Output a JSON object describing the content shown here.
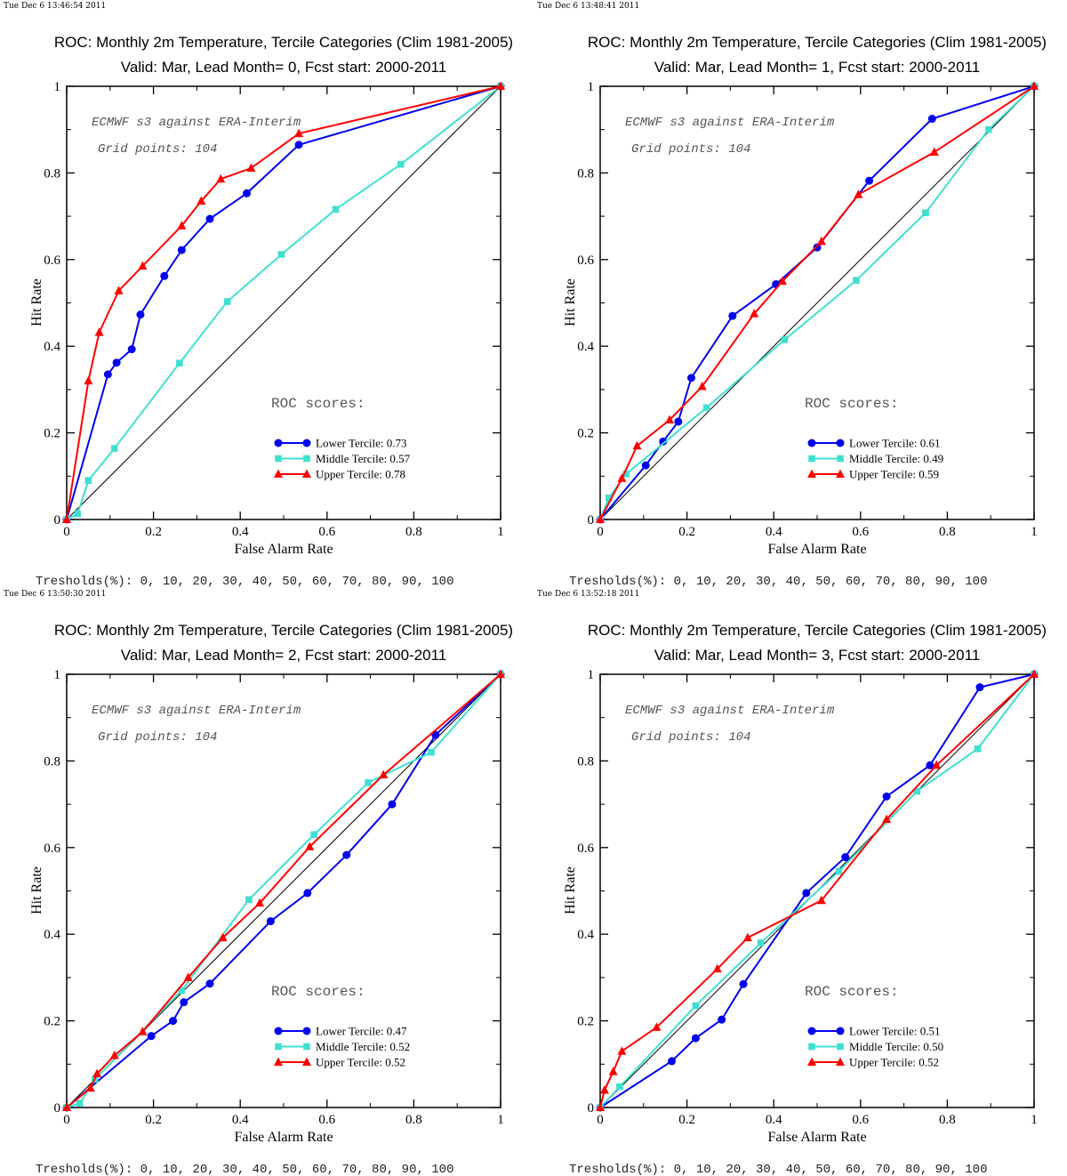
{
  "colors": {
    "lower": "#0000ee",
    "middle": "#40e0d0",
    "upper": "#ff0000",
    "diagonal": "#000000"
  },
  "chart_data": [
    {
      "type": "line",
      "stamp": "Tue Dec  6 13:46:54 2011",
      "title": "ROC: Monthly 2m Temperature, Tercile Categories (Clim 1981-2005)",
      "subtitle": "Valid: Mar, Lead Month= 0, Fcst start: 2000-2011",
      "xlabel": "False Alarm Rate",
      "ylabel": "Hit Rate",
      "xlim": [
        0,
        1
      ],
      "ylim": [
        0,
        1
      ],
      "xticks": [
        "0",
        "0.2",
        "0.4",
        "0.6",
        "0.8",
        "1"
      ],
      "yticks": [
        "0",
        "0.2",
        "0.4",
        "0.6",
        "0.8",
        "1"
      ],
      "note1": "ECMWF s3 against ERA-Interim",
      "note2": "Grid points:  104",
      "scores_heading": "ROC scores:",
      "thresholds": "Tresholds(%): 0, 10, 20, 30, 40, 50, 60, 70, 80, 90, 100",
      "series": [
        {
          "name": "Lower Tercile: 0.73",
          "marker": "circle",
          "color": "#0000ee",
          "x": [
            0,
            0.095,
            0.115,
            0.15,
            0.17,
            0.225,
            0.265,
            0.33,
            0.415,
            0.535,
            1
          ],
          "y": [
            0,
            0.335,
            0.362,
            0.393,
            0.473,
            0.562,
            0.622,
            0.694,
            0.753,
            0.865,
            1
          ]
        },
        {
          "name": "Middle Tercile: 0.57",
          "marker": "square",
          "color": "#40e0d0",
          "x": [
            0,
            0.025,
            0.05,
            0.11,
            0.26,
            0.37,
            0.495,
            0.62,
            0.77,
            1
          ],
          "y": [
            0,
            0.013,
            0.09,
            0.164,
            0.361,
            0.503,
            0.612,
            0.716,
            0.82,
            1
          ]
        },
        {
          "name": "Upper Tercile: 0.78",
          "marker": "triangle",
          "color": "#ff0000",
          "x": [
            0,
            0.05,
            0.075,
            0.12,
            0.175,
            0.265,
            0.31,
            0.355,
            0.425,
            0.535,
            1
          ],
          "y": [
            0,
            0.32,
            0.432,
            0.528,
            0.585,
            0.678,
            0.735,
            0.786,
            0.811,
            0.891,
            1
          ]
        }
      ]
    },
    {
      "type": "line",
      "stamp": "Tue Dec  6 13:48:41 2011",
      "title": "ROC: Monthly 2m Temperature, Tercile Categories (Clim 1981-2005)",
      "subtitle": "Valid: Mar, Lead Month= 1, Fcst start: 2000-2011",
      "xlabel": "False Alarm Rate",
      "ylabel": "Hit Rate",
      "xlim": [
        0,
        1
      ],
      "ylim": [
        0,
        1
      ],
      "xticks": [
        "0",
        "0.2",
        "0.4",
        "0.6",
        "0.8",
        "1"
      ],
      "yticks": [
        "0",
        "0.2",
        "0.4",
        "0.6",
        "0.8",
        "1"
      ],
      "note1": "ECMWF s3 against ERA-Interim",
      "note2": "Grid points:  104",
      "scores_heading": "ROC scores:",
      "thresholds": "Tresholds(%): 0, 10, 20, 30, 40, 50, 60, 70, 80, 90, 100",
      "series": [
        {
          "name": "Lower Tercile: 0.61",
          "marker": "circle",
          "color": "#0000ee",
          "x": [
            0,
            0.105,
            0.145,
            0.18,
            0.21,
            0.305,
            0.405,
            0.5,
            0.62,
            0.765,
            1
          ],
          "y": [
            0,
            0.125,
            0.18,
            0.226,
            0.327,
            0.47,
            0.543,
            0.628,
            0.782,
            0.925,
            1
          ]
        },
        {
          "name": "Middle Tercile: 0.49",
          "marker": "square",
          "color": "#40e0d0",
          "x": [
            0,
            0.02,
            0.06,
            0.245,
            0.425,
            0.59,
            0.75,
            0.895,
            1
          ],
          "y": [
            0,
            0.05,
            0.105,
            0.258,
            0.415,
            0.552,
            0.708,
            0.9,
            1
          ]
        },
        {
          "name": "Upper Tercile: 0.59",
          "marker": "triangle",
          "color": "#ff0000",
          "x": [
            0,
            0.05,
            0.085,
            0.16,
            0.235,
            0.355,
            0.42,
            0.51,
            0.595,
            0.77,
            1
          ],
          "y": [
            0,
            0.095,
            0.17,
            0.23,
            0.307,
            0.475,
            0.55,
            0.642,
            0.75,
            0.848,
            1
          ]
        }
      ]
    },
    {
      "type": "line",
      "stamp": "Tue Dec  6 13:50:30 2011",
      "title": "ROC: Monthly 2m Temperature, Tercile Categories (Clim 1981-2005)",
      "subtitle": "Valid: Mar, Lead Month= 2, Fcst start: 2000-2011",
      "xlabel": "False Alarm Rate",
      "ylabel": "Hit Rate",
      "xlim": [
        0,
        1
      ],
      "ylim": [
        0,
        1
      ],
      "xticks": [
        "0",
        "0.2",
        "0.4",
        "0.6",
        "0.8",
        "1"
      ],
      "yticks": [
        "0",
        "0.2",
        "0.4",
        "0.6",
        "0.8",
        "1"
      ],
      "note1": "ECMWF s3 against ERA-Interim",
      "note2": "Grid points:  104",
      "scores_heading": "ROC scores:",
      "thresholds": "Tresholds(%): 0, 10, 20, 30, 40, 50, 60, 70, 80, 90, 100",
      "series": [
        {
          "name": "Lower Tercile: 0.47",
          "marker": "circle",
          "color": "#0000ee",
          "x": [
            0,
            0.195,
            0.245,
            0.27,
            0.33,
            0.47,
            0.555,
            0.645,
            0.75,
            0.85,
            1
          ],
          "y": [
            0,
            0.165,
            0.2,
            0.243,
            0.286,
            0.43,
            0.495,
            0.583,
            0.7,
            0.86,
            1
          ]
        },
        {
          "name": "Middle Tercile: 0.52",
          "marker": "square",
          "color": "#40e0d0",
          "x": [
            0,
            0.03,
            0.065,
            0.265,
            0.42,
            0.57,
            0.695,
            0.84,
            1
          ],
          "y": [
            0,
            0.01,
            0.065,
            0.27,
            0.48,
            0.63,
            0.75,
            0.82,
            1
          ]
        },
        {
          "name": "Upper Tercile: 0.52",
          "marker": "triangle",
          "color": "#ff0000",
          "x": [
            0,
            0.055,
            0.07,
            0.11,
            0.175,
            0.28,
            0.36,
            0.445,
            0.56,
            0.73,
            1
          ],
          "y": [
            0,
            0.045,
            0.078,
            0.12,
            0.175,
            0.3,
            0.392,
            0.472,
            0.602,
            0.768,
            1
          ]
        }
      ]
    },
    {
      "type": "line",
      "stamp": "Tue Dec  6 13:52:18 2011",
      "title": "ROC: Monthly 2m Temperature, Tercile Categories (Clim 1981-2005)",
      "subtitle": "Valid: Mar, Lead Month= 3, Fcst start: 2000-2011",
      "xlabel": "False Alarm Rate",
      "ylabel": "Hit Rate",
      "xlim": [
        0,
        1
      ],
      "ylim": [
        0,
        1
      ],
      "xticks": [
        "0",
        "0.2",
        "0.4",
        "0.6",
        "0.8",
        "1"
      ],
      "yticks": [
        "0",
        "0.2",
        "0.4",
        "0.6",
        "0.8",
        "1"
      ],
      "note1": "ECMWF s3 against ERA-Interim",
      "note2": "Grid points:  104",
      "scores_heading": "ROC scores:",
      "thresholds": "Tresholds(%): 0, 10, 20, 30, 40, 50, 60, 70, 80, 90, 100",
      "series": [
        {
          "name": "Lower Tercile: 0.51",
          "marker": "circle",
          "color": "#0000ee",
          "x": [
            0,
            0.165,
            0.22,
            0.28,
            0.33,
            0.475,
            0.565,
            0.66,
            0.76,
            0.875,
            1
          ],
          "y": [
            0,
            0.107,
            0.16,
            0.203,
            0.285,
            0.495,
            0.578,
            0.718,
            0.79,
            0.97,
            1
          ]
        },
        {
          "name": "Middle Tercile: 0.50",
          "marker": "square",
          "color": "#40e0d0",
          "x": [
            0,
            0.045,
            0.22,
            0.37,
            0.55,
            0.73,
            0.87,
            1
          ],
          "y": [
            0,
            0.048,
            0.235,
            0.38,
            0.545,
            0.73,
            0.828,
            1
          ]
        },
        {
          "name": "Upper Tercile: 0.52",
          "marker": "triangle",
          "color": "#ff0000",
          "x": [
            0,
            0.01,
            0.03,
            0.05,
            0.13,
            0.27,
            0.34,
            0.51,
            0.66,
            0.775,
            1
          ],
          "y": [
            0,
            0.04,
            0.083,
            0.13,
            0.185,
            0.32,
            0.392,
            0.478,
            0.665,
            0.79,
            1
          ]
        }
      ]
    }
  ]
}
